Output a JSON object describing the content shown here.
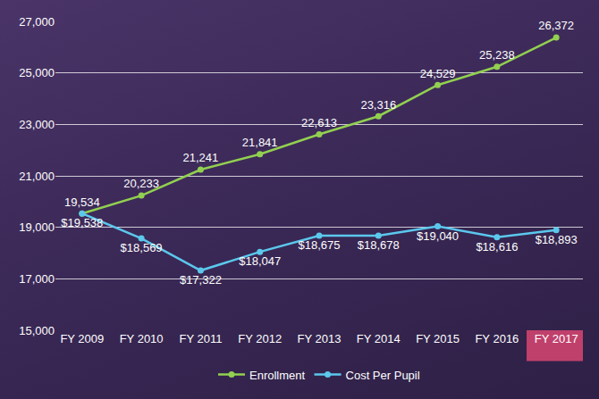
{
  "chart_data": {
    "type": "line",
    "categories": [
      "FY 2009",
      "FY 2010",
      "FY 2011",
      "FY 2012",
      "FY 2013",
      "FY 2014",
      "FY 2015",
      "FY 2016",
      "FY 2017"
    ],
    "series": [
      {
        "name": "Enrollment",
        "color": "#92d050",
        "marker": "circle",
        "values": [
          19534,
          20233,
          21241,
          21841,
          22613,
          23316,
          24529,
          25238,
          26372
        ],
        "value_labels": [
          "19,534",
          "20,233",
          "21,241",
          "21,841",
          "22,613",
          "23,316",
          "24,529",
          "25,238",
          "26,372"
        ]
      },
      {
        "name": "Cost Per Pupil",
        "color": "#5bc8ec",
        "marker": "circle",
        "values": [
          19538,
          18569,
          17322,
          18047,
          18675,
          18678,
          19040,
          18616,
          18893
        ],
        "value_labels": [
          "$19,538",
          "$18,569",
          "$17,322",
          "$18,047",
          "$18,675",
          "$18,678",
          "$19,040",
          "$18,616",
          "$18,893"
        ]
      }
    ],
    "ylim": [
      15000,
      27000
    ],
    "yticks": [
      {
        "value": 15000,
        "label": "15,000"
      },
      {
        "value": 17000,
        "label": "17,000"
      },
      {
        "value": 19000,
        "label": "19,000"
      },
      {
        "value": 21000,
        "label": "21,000"
      },
      {
        "value": 23000,
        "label": "23,000"
      },
      {
        "value": 25000,
        "label": "25,000"
      },
      {
        "value": 27000,
        "label": "27,000"
      }
    ],
    "grid": true,
    "legend": "bottom",
    "data_labels": true
  }
}
